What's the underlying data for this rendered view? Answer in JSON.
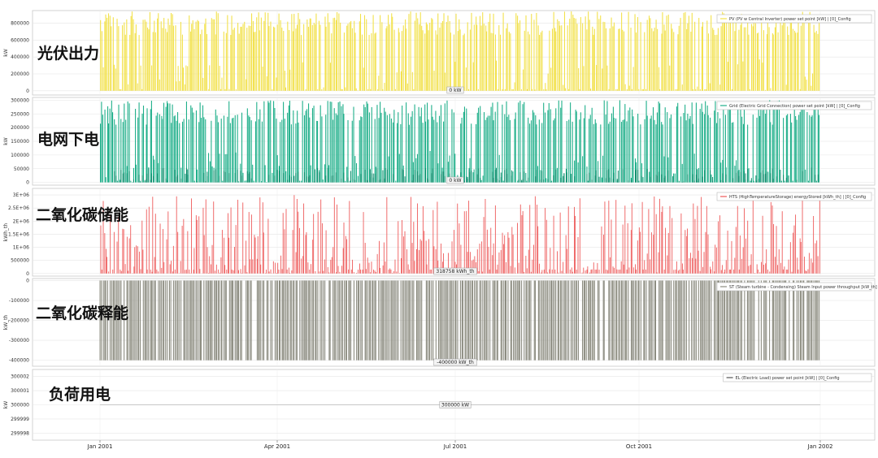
{
  "chart_data": [
    {
      "type": "area",
      "panel_label": "光伏出力",
      "ylabel": "kW",
      "yticks": [
        "800000",
        "600000",
        "400000",
        "200000",
        "0"
      ],
      "ytick_values": [
        800000,
        600000,
        400000,
        200000,
        0
      ],
      "ylim": [
        -50000,
        950000
      ],
      "legend": "PV (PV w Central Inverter) power set point [kW] | [0]_Config",
      "cursor_label": "0 kW",
      "series": [
        {
          "color": "#F2E14C",
          "peak": 940000,
          "floor": 0,
          "style": "fill_from_floor"
        }
      ]
    },
    {
      "type": "area",
      "panel_label": "电网下电",
      "ylabel": "kW",
      "yticks": [
        "300000",
        "250000",
        "200000",
        "150000",
        "100000",
        "50000",
        "0"
      ],
      "ytick_values": [
        300000,
        250000,
        200000,
        150000,
        100000,
        50000,
        0
      ],
      "ylim": [
        -10000,
        310000
      ],
      "legend": "Grid (Electric Grid Connection) power set point [kW] | [0]_Config",
      "cursor_label": "0 kW",
      "series": [
        {
          "color": "#1FAF8A",
          "peak": 300000,
          "floor": 0,
          "style": "fill_from_floor"
        }
      ]
    },
    {
      "type": "area",
      "panel_label": "二氧化碳储能",
      "ylabel": "kWh_th",
      "yticks": [
        "3E+06",
        "2.5E+06",
        "2E+06",
        "1.5E+06",
        "1E+06",
        "500000",
        "0"
      ],
      "ytick_values": [
        3000000,
        2500000,
        2000000,
        1500000,
        1000000,
        500000,
        0
      ],
      "ylim": [
        -100000,
        3250000
      ],
      "legend": "HTS (HighTemperatureStorage) energyStored [kWh_th] | [0]_Config",
      "cursor_label": "318758 kWh_th",
      "series": [
        {
          "color": "#EE5B5B",
          "peak": 3000000,
          "floor": 0,
          "style": "spikes"
        }
      ]
    },
    {
      "type": "area",
      "panel_label": "二氧化碳释能",
      "ylabel": "kW_th",
      "yticks": [
        "0",
        "-100000",
        "-200000",
        "-300000",
        "-400000"
      ],
      "ytick_values": [
        0,
        -100000,
        -200000,
        -300000,
        -400000
      ],
      "ylim": [
        -430000,
        10000
      ],
      "legend": "ST (Steam turbine - Condensing) Steam Input power throughput [kW_th] | [0]_Config",
      "cursor_label": "-400000 kW_th",
      "series": [
        {
          "color": "#8C8C80",
          "peak": -400000,
          "floor": 0,
          "style": "fill_from_ceiling"
        }
      ]
    },
    {
      "type": "line",
      "panel_label": "负荷用电",
      "ylabel": "kW",
      "yticks": [
        "300002",
        "300001",
        "300000",
        "299999",
        "299998"
      ],
      "ytick_values": [
        300002,
        300001,
        300000,
        299999,
        299998
      ],
      "ylim": [
        299997.5,
        300002.5
      ],
      "legend": "EL (Electric Load) power set point [kW] | [0]_Config",
      "cursor_label": "300000 kW",
      "series": [
        {
          "color": "#555555",
          "constant": 300000
        }
      ]
    }
  ],
  "x_axis": {
    "ticks": [
      "Jan 2001",
      "Apr 2001",
      "Jul 2001",
      "Oct 2001",
      "Jan 2002"
    ],
    "tick_days": [
      0,
      90,
      181,
      273,
      365
    ],
    "data_start_day": 0,
    "data_end_day": 365
  }
}
